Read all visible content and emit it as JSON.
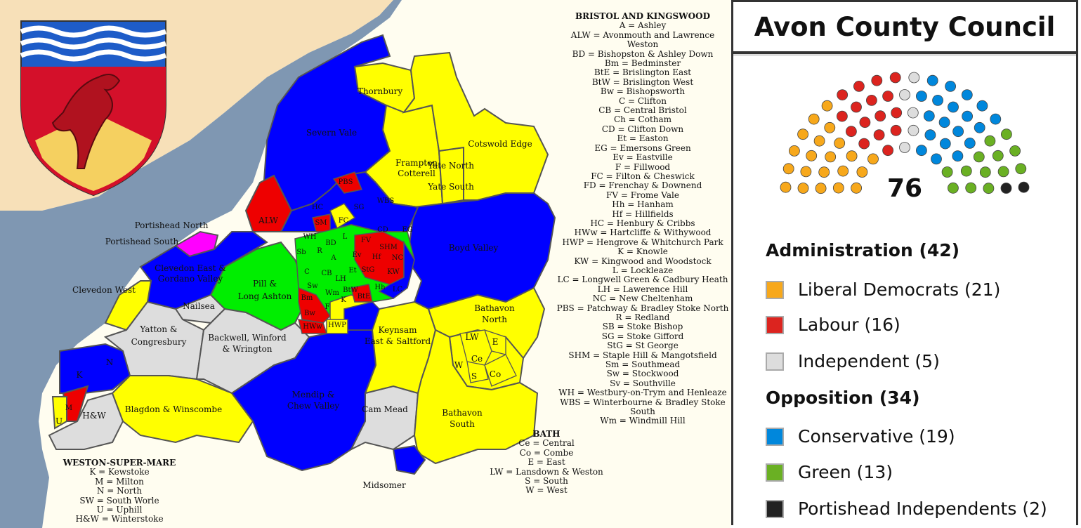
{
  "title": "Avon County Council",
  "total_seats": "76",
  "colors": {
    "libdem": "#f7a81b",
    "labour": "#dc241f",
    "independent": "#dddddd",
    "conservative": "#0087dc",
    "green": "#6ab023",
    "portishead_ind": "#222222",
    "map_blue": "#0000ff",
    "map_yellow": "#ffff00",
    "map_red": "#ee0000",
    "map_green": "#00ee00",
    "map_grey": "#dddddd",
    "map_magenta": "#ff00ff",
    "water": "#7f97b2",
    "land": "#f7e0b8",
    "sea_bg": "#fffdf0"
  },
  "hemicycle": [
    {
      "party": "libdem",
      "seats": 21
    },
    {
      "party": "labour",
      "seats": 16
    },
    {
      "party": "independent",
      "seats": 5
    },
    {
      "party": "conservative",
      "seats": 19
    },
    {
      "party": "green",
      "seats": 13
    },
    {
      "party": "portishead_ind",
      "seats": 2
    }
  ],
  "legend": {
    "administration_heading": "Administration (42)",
    "opposition_heading": "Opposition (34)",
    "administration": [
      {
        "label": "Liberal Democrats (21)",
        "color": "#f7a81b"
      },
      {
        "label": "Labour (16)",
        "color": "#dc241f"
      },
      {
        "label": "Independent (5)",
        "color": "#dddddd"
      }
    ],
    "opposition": [
      {
        "label": "Conservative (19)",
        "color": "#0087dc"
      },
      {
        "label": "Green (13)",
        "color": "#6ab023"
      },
      {
        "label": "Portishead Independents (2)",
        "color": "#222222"
      }
    ]
  },
  "map_labels": {
    "thornbury": "Thornbury",
    "severn_vale": "Severn Vale",
    "frampton": "Frampton",
    "cotterell": "Cotterell",
    "yate_north": "Yate North",
    "yate_south": "Yate South",
    "cotswold_edge": "Cotswold Edge",
    "portishead_north": "Portishead North",
    "portishead_south": "Portishead South",
    "alw": "ALW",
    "clevedon_east": "Clevedon East &",
    "gordano_valley": "Gordano Valley",
    "clevedon_west": "Clevedon West",
    "pill": "Pill &",
    "long_ashton": "Long Ashton",
    "nailsea": "Nailsea",
    "boyd_valley": "Boyd Valley",
    "yatton": "Yatton &",
    "congresbury": "Congresbury",
    "backwell": "Backwell, Winford",
    "wrington": "& Wrington",
    "bathavon_north": "Bathavon",
    "bathavon_north2": "North",
    "keynsham": "Keynsam",
    "saltford": "East & Saltford",
    "blagdon": "Blagdon & Winscombe",
    "mendip": "Mendip &",
    "chew_valley": "Chew Valley",
    "cam_mead": "Cam Mead",
    "bathavon_south": "Bathavon",
    "bathavon_south2": "South",
    "midsomer": "Midsomer",
    "hw": "H&W",
    "k": "K",
    "n": "N",
    "u": "U",
    "m": "M",
    "pbs": "PBS",
    "wbs": "WBS",
    "sg": "SG",
    "hc": "HC",
    "fc": "FC",
    "sm": "SM",
    "cd": "CD",
    "eg": "EG",
    "fv": "FV",
    "shm": "SHM",
    "nc": "NC",
    "kw": "KW",
    "hf": "Hf",
    "stg": "StG",
    "ev": "Ev",
    "et": "Et",
    "lh": "LH",
    "l": "L",
    "a": "A",
    "bd": "BD",
    "r": "R",
    "sb": "Sb",
    "wh": "WH",
    "c": "C",
    "cb": "CB",
    "sw": "Sw",
    "bm": "Bm",
    "bw": "Bw",
    "wm": "Wm",
    "f": "F",
    "btw": "BtW",
    "bte": "BtE",
    "hhh": "Hh",
    "lc": "LC",
    "hww": "HWw",
    "hwp": "HWP",
    "kk": "K",
    "lw": "LW",
    "e": "E",
    "ce": "Ce",
    "w": "W",
    "s": "S",
    "co": "Co"
  },
  "keys": {
    "bristol": {
      "heading": "BRISTOL AND KINGSWOOD",
      "lines": [
        "A = Ashley",
        "ALW = Avonmouth and Lawrence Weston",
        "BD = Bishopston & Ashley Down",
        "Bm = Bedminster",
        "BtE = Brislington East",
        "BtW = Brislington West",
        "Bw = Bishopsworth",
        "C = Clifton",
        "CB = Central Bristol",
        "Ch = Cotham",
        "CD = Clifton Down",
        "Et = Easton",
        "EG = Emersons Green",
        "Ev = Eastville",
        "F = Fillwood",
        "FC = Filton & Cheswick",
        "FD = Frenchay & Downend",
        "FV = Frome Vale",
        "Hh = Hanham",
        "Hf = Hillfields",
        "HC = Henbury & Cribbs",
        "HWw = Hartcliffe & Withywood",
        "HWP = Hengrove & Whitchurch Park",
        "K = Knowle",
        "KW = Kingwood and Woodstock",
        "L = Lockleaze",
        "LC = Longwell Green & Cadbury Heath",
        "LH = Lawerence Hill",
        "NC = New Cheltenham",
        "PBS = Patchway & Bradley Stoke North",
        "R = Redland",
        "SB = Stoke Bishop",
        "SG = Stoke Gifford",
        "StG = St George",
        "SHM = Staple Hill & Mangotsfield",
        "Sm = Southmead",
        "Sw = Stockwood",
        "Sv = Southville",
        "WH = Westbury-on-Trym and Henleaze",
        "WBS = Winterbourne & Bradley Stoke South",
        "Wm = Windmill Hill"
      ]
    },
    "bath": {
      "heading": "BATH",
      "lines": [
        "Ce = Central",
        "Co = Combe",
        "E = East",
        "LW = Lansdown & Weston",
        "S = South",
        "W = West"
      ]
    },
    "weston": {
      "heading": "WESTON-SUPER-MARE",
      "lines": [
        "K = Kewstoke",
        "M = Milton",
        "N = North",
        "SW = South Worle",
        "U = Uphill",
        "H&W = Winterstoke"
      ]
    }
  }
}
